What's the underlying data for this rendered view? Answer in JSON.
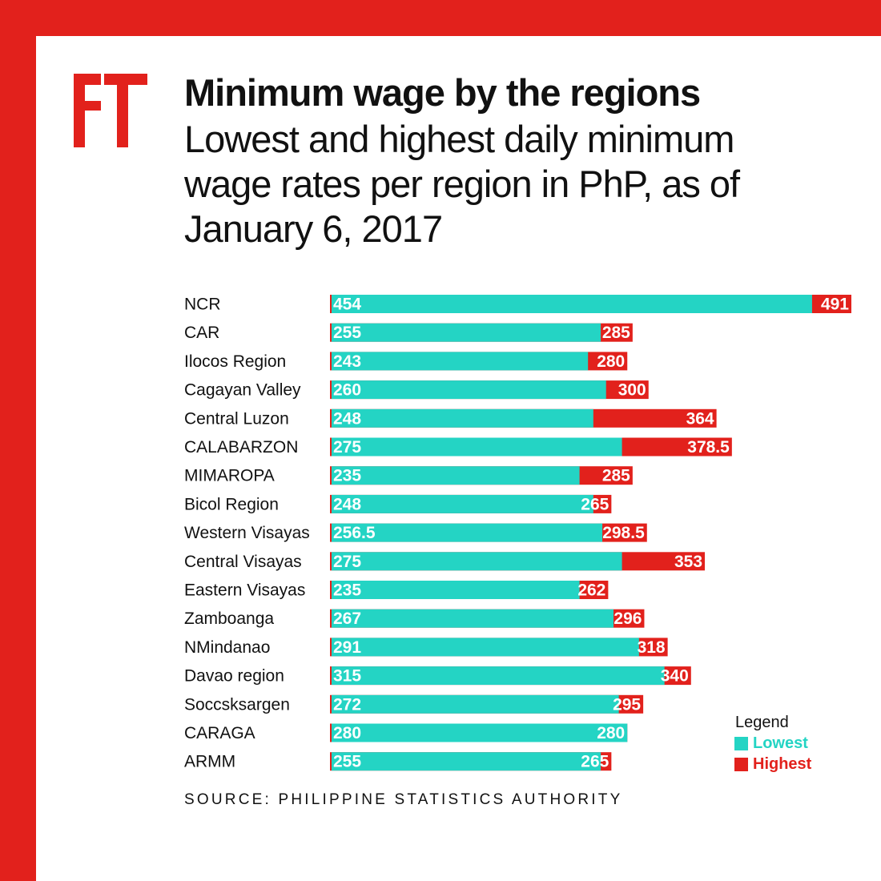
{
  "title": "Minimum wage by the regions",
  "subtitle": "Lowest and highest daily minimum wage rates per region in PhP, as of January 6, 2017",
  "source": "SOURCE: PHILIPPINE STATISTICS AUTHORITY",
  "logo_icon": "ft-logo-icon",
  "colors": {
    "frame": "#e2211c",
    "lowest": "#24d4c4",
    "highest": "#e2211c",
    "text": "#111111"
  },
  "legend": {
    "title": "Legend",
    "lowest": "Lowest",
    "highest": "Highest",
    "placement": "bottom-right"
  },
  "chart_data": {
    "type": "bar",
    "orientation": "horizontal",
    "stacked_overlay": true,
    "categories": [
      "NCR",
      "CAR",
      "Ilocos Region",
      "Cagayan Valley",
      "Central Luzon",
      "CALABARZON",
      "MIMAROPA",
      "Bicol Region",
      "Western Visayas",
      "Central Visayas",
      "Eastern Visayas",
      "Zamboanga",
      "NMindanao",
      "Davao region",
      "Soccsksargen",
      "CARAGA",
      "ARMM"
    ],
    "series": [
      {
        "name": "Lowest",
        "values": [
          454,
          255,
          243,
          260,
          248,
          275,
          235,
          248,
          256.5,
          275,
          235,
          267,
          291,
          315,
          272,
          280,
          255
        ]
      },
      {
        "name": "Highest",
        "values": [
          491,
          285,
          280,
          300,
          364,
          378.5,
          285,
          265,
          298.5,
          353,
          262,
          296,
          318,
          340,
          295,
          280,
          265
        ]
      }
    ],
    "xlim": [
      0,
      491
    ],
    "grid": false
  }
}
